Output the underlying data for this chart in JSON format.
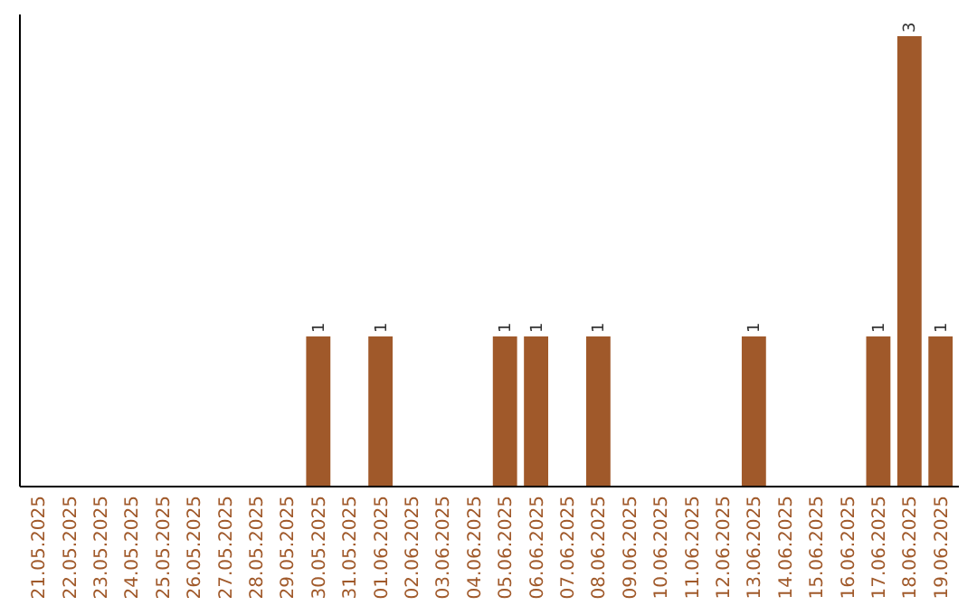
{
  "chart_data": {
    "type": "bar",
    "categories": [
      "21.05.2025",
      "22.05.2025",
      "23.05.2025",
      "24.05.2025",
      "25.05.2025",
      "26.05.2025",
      "27.05.2025",
      "28.05.2025",
      "29.05.2025",
      "30.05.2025",
      "31.05.2025",
      "01.06.2025",
      "02.06.2025",
      "03.06.2025",
      "04.06.2025",
      "05.06.2025",
      "06.06.2025",
      "07.06.2025",
      "08.06.2025",
      "09.06.2025",
      "10.06.2025",
      "11.06.2025",
      "12.06.2025",
      "13.06.2025",
      "14.06.2025",
      "15.06.2025",
      "16.06.2025",
      "17.06.2025",
      "18.06.2025",
      "19.06.2025"
    ],
    "values": [
      0,
      0,
      0,
      0,
      0,
      0,
      0,
      0,
      0,
      1,
      0,
      1,
      0,
      0,
      0,
      1,
      1,
      0,
      1,
      0,
      0,
      0,
      0,
      1,
      0,
      0,
      0,
      1,
      3,
      1
    ],
    "value_labels": [
      null,
      null,
      null,
      null,
      null,
      null,
      null,
      null,
      null,
      "1",
      null,
      "1",
      null,
      null,
      null,
      "1",
      "1",
      null,
      "1",
      null,
      null,
      null,
      null,
      "1",
      null,
      null,
      null,
      "1",
      "3",
      "1"
    ],
    "color": "#a0592a",
    "tick_labels": "x"
  }
}
